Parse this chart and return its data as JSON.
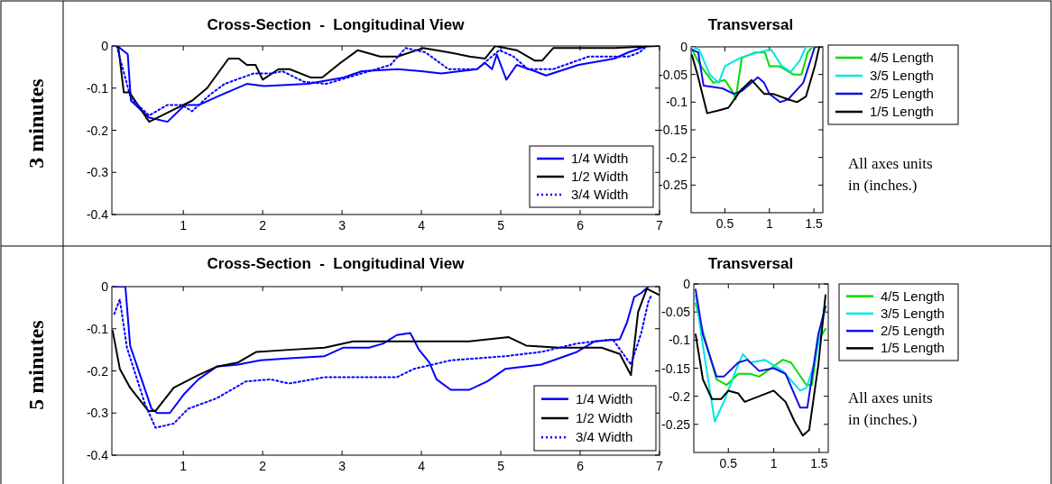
{
  "chart_data": [
    {
      "type": "line",
      "title": "Cross-Section  -  Longitudinal View",
      "ylabel": "3 minutes",
      "xlim": [
        0.1,
        7
      ],
      "ylim": [
        -0.4,
        0
      ],
      "xticks": [
        1,
        2,
        3,
        4,
        5,
        6,
        7
      ],
      "yticks": [
        0,
        -0.1,
        -0.2,
        -0.3,
        -0.4
      ],
      "legend": "bottom right",
      "series": [
        {
          "name": "1/4 Width",
          "color": "#0000ff",
          "line_style": "solid",
          "x": [
            0.17,
            0.3,
            0.34,
            0.57,
            0.8,
            1.02,
            1.2,
            1.43,
            1.8,
            2.02,
            2.57,
            3.02,
            3.25,
            3.7,
            4.0,
            4.25,
            4.7,
            4.8,
            4.89,
            4.95,
            5.07,
            5.2,
            5.43,
            5.57,
            5.98,
            6.43,
            6.61,
            6.84,
            6.98
          ],
          "values": [
            0,
            -0.02,
            -0.13,
            -0.17,
            -0.18,
            -0.14,
            -0.14,
            -0.12,
            -0.09,
            -0.095,
            -0.09,
            -0.075,
            -0.06,
            -0.055,
            -0.06,
            -0.065,
            -0.055,
            -0.04,
            -0.055,
            -0.02,
            -0.08,
            -0.045,
            -0.06,
            -0.07,
            -0.045,
            -0.03,
            -0.015,
            0,
            0
          ]
        },
        {
          "name": "1/2 Width",
          "color": "#000000",
          "line_style": "solid",
          "x": [
            0.18,
            0.25,
            0.32,
            0.57,
            0.89,
            1.11,
            1.3,
            1.57,
            1.7,
            1.8,
            1.91,
            2.0,
            2.2,
            2.34,
            2.61,
            2.75,
            2.98,
            3.2,
            3.48,
            3.7,
            4.02,
            4.34,
            4.61,
            4.8,
            4.93,
            5.2,
            5.43,
            5.52,
            5.66,
            6.43,
            6.98
          ],
          "values": [
            0,
            -0.11,
            -0.11,
            -0.18,
            -0.15,
            -0.13,
            -0.1,
            -0.03,
            -0.03,
            -0.045,
            -0.045,
            -0.08,
            -0.055,
            -0.055,
            -0.075,
            -0.075,
            -0.04,
            -0.01,
            -0.025,
            -0.025,
            -0.005,
            -0.015,
            -0.025,
            -0.03,
            0,
            -0.01,
            -0.035,
            -0.035,
            -0.005,
            -0.005,
            0
          ]
        },
        {
          "name": "3/4 Width",
          "color": "#0000ff",
          "line_style": "dotted",
          "x": [
            0.16,
            0.34,
            0.57,
            0.8,
            0.98,
            1.11,
            1.34,
            1.52,
            1.89,
            2.11,
            2.25,
            2.52,
            2.8,
            3.25,
            3.61,
            3.8,
            4.05,
            4.34,
            4.7,
            4.98,
            5.16,
            5.34,
            5.66,
            6.11,
            6.61,
            6.75,
            6.84
          ],
          "values": [
            0,
            -0.125,
            -0.165,
            -0.14,
            -0.14,
            -0.155,
            -0.115,
            -0.09,
            -0.065,
            -0.065,
            -0.06,
            -0.085,
            -0.09,
            -0.065,
            -0.045,
            -0.005,
            -0.015,
            -0.055,
            -0.055,
            -0.01,
            -0.025,
            -0.055,
            -0.055,
            -0.025,
            -0.025,
            -0.015,
            0
          ]
        }
      ]
    },
    {
      "type": "line",
      "title": "Transversal",
      "xlim": [
        0.12,
        1.6
      ],
      "ylim": [
        -0.3,
        0
      ],
      "xticks": [
        0.5,
        1,
        1.5
      ],
      "yticks": [
        0,
        -0.05,
        -0.1,
        -0.15,
        -0.2,
        -0.25
      ],
      "legend": "right",
      "annotations": [
        "All axes units in (inches.)"
      ],
      "series": [
        {
          "name": "4/5 Length",
          "color": "#00dd00",
          "line_style": "solid",
          "x": [
            0.13,
            0.23,
            0.37,
            0.5,
            0.6,
            0.62,
            0.69,
            0.84,
            0.95,
            1.0,
            1.11,
            1.27,
            1.36,
            1.43,
            1.48
          ],
          "values": [
            -0.005,
            -0.035,
            -0.065,
            -0.06,
            -0.085,
            -0.095,
            -0.02,
            -0.01,
            -0.01,
            -0.035,
            -0.035,
            -0.05,
            -0.05,
            -0.01,
            0
          ]
        },
        {
          "name": "3/5 Length",
          "color": "#00e5e5",
          "line_style": "solid",
          "x": [
            0.13,
            0.21,
            0.33,
            0.43,
            0.5,
            0.67,
            0.87,
            1.02,
            1.14,
            1.24,
            1.34,
            1.41,
            1.54
          ],
          "values": [
            0,
            -0.005,
            -0.05,
            -0.065,
            -0.035,
            -0.02,
            -0.01,
            -0.005,
            -0.035,
            -0.045,
            -0.025,
            0,
            0
          ]
        },
        {
          "name": "2/5 Length",
          "color": "#1010e0",
          "line_style": "solid",
          "x": [
            0.13,
            0.2,
            0.26,
            0.47,
            0.6,
            0.69,
            0.87,
            0.94,
            1.0,
            1.12,
            1.21,
            1.38,
            1.51,
            1.58
          ],
          "values": [
            -0.005,
            -0.01,
            -0.07,
            -0.075,
            -0.085,
            -0.08,
            -0.055,
            -0.065,
            -0.085,
            -0.1,
            -0.095,
            -0.065,
            0,
            0
          ]
        },
        {
          "name": "1/5 Length",
          "color": "#000000",
          "line_style": "solid",
          "x": [
            0.13,
            0.2,
            0.3,
            0.43,
            0.54,
            0.67,
            0.8,
            0.94,
            1.04,
            1.21,
            1.31,
            1.41,
            1.51,
            1.56
          ],
          "values": [
            -0.015,
            -0.055,
            -0.12,
            -0.115,
            -0.11,
            -0.08,
            -0.06,
            -0.085,
            -0.085,
            -0.095,
            -0.1,
            -0.09,
            -0.035,
            0
          ]
        }
      ]
    },
    {
      "type": "line",
      "title": "Cross-Section  -  Longitudinal View",
      "ylabel": "5 minutes",
      "xlim": [
        0.1,
        7
      ],
      "ylim": [
        -0.4,
        0
      ],
      "xticks": [
        1,
        2,
        3,
        4,
        5,
        6,
        7
      ],
      "yticks": [
        0,
        -0.1,
        -0.2,
        -0.3,
        -0.4
      ],
      "legend": "bottom right",
      "series": [
        {
          "name": "1/4 Width",
          "color": "#0000ff",
          "line_style": "solid",
          "x": [
            0.13,
            0.27,
            0.33,
            0.42,
            0.6,
            0.67,
            0.83,
            1.01,
            1.19,
            1.42,
            1.69,
            1.97,
            2.34,
            2.78,
            3.01,
            3.34,
            3.52,
            3.69,
            3.86,
            3.97,
            4.1,
            4.19,
            4.37,
            4.6,
            4.83,
            5.06,
            5.51,
            5.96,
            6.18,
            6.5,
            6.59,
            6.68,
            6.77,
            6.86
          ],
          "values": [
            0,
            0,
            -0.14,
            -0.19,
            -0.29,
            -0.3,
            -0.3,
            -0.255,
            -0.22,
            -0.19,
            -0.185,
            -0.175,
            -0.17,
            -0.165,
            -0.145,
            -0.145,
            -0.135,
            -0.115,
            -0.11,
            -0.15,
            -0.18,
            -0.22,
            -0.245,
            -0.245,
            -0.225,
            -0.195,
            -0.185,
            -0.155,
            -0.13,
            -0.125,
            -0.085,
            -0.025,
            -0.015,
            0
          ]
        },
        {
          "name": "1/2 Width",
          "color": "#000000",
          "line_style": "solid",
          "x": [
            0.11,
            0.2,
            0.33,
            0.56,
            0.65,
            0.88,
            1.19,
            1.42,
            1.69,
            1.92,
            2.33,
            2.78,
            3.14,
            3.5,
            3.91,
            4.6,
            5.1,
            5.32,
            5.73,
            6.27,
            6.5,
            6.64,
            6.73,
            6.84,
            7.0
          ],
          "values": [
            -0.105,
            -0.195,
            -0.24,
            -0.295,
            -0.295,
            -0.24,
            -0.21,
            -0.19,
            -0.18,
            -0.155,
            -0.15,
            -0.145,
            -0.13,
            -0.13,
            -0.13,
            -0.13,
            -0.12,
            -0.14,
            -0.145,
            -0.145,
            -0.16,
            -0.21,
            -0.06,
            -0.005,
            -0.02
          ]
        },
        {
          "name": "3/4 Width",
          "color": "#0000ff",
          "line_style": "dotted",
          "x": [
            0.13,
            0.2,
            0.29,
            0.52,
            0.65,
            0.88,
            1.06,
            1.42,
            1.79,
            2.1,
            2.33,
            2.78,
            3.23,
            3.69,
            3.91,
            4.37,
            5.06,
            5.51,
            5.96,
            6.41,
            6.64,
            6.77,
            6.86,
            6.9
          ],
          "values": [
            -0.065,
            -0.03,
            -0.145,
            -0.28,
            -0.335,
            -0.325,
            -0.29,
            -0.265,
            -0.225,
            -0.22,
            -0.23,
            -0.215,
            -0.215,
            -0.215,
            -0.195,
            -0.175,
            -0.165,
            -0.155,
            -0.135,
            -0.125,
            -0.185,
            -0.11,
            -0.035,
            -0.02
          ]
        }
      ]
    },
    {
      "type": "line",
      "title": "Transversal",
      "xlim": [
        0.12,
        1.6
      ],
      "ylim": [
        -0.3,
        0
      ],
      "xticks": [
        0.5,
        1,
        1.5
      ],
      "yticks": [
        0,
        -0.05,
        -0.1,
        -0.15,
        -0.2,
        -0.25
      ],
      "legend": "right",
      "annotations": [
        "All axes units in (inches.)"
      ],
      "series": [
        {
          "name": "4/5 Length",
          "color": "#00dd00",
          "line_style": "solid",
          "x": [
            0.14,
            0.22,
            0.37,
            0.48,
            0.61,
            0.74,
            0.84,
            0.97,
            1.1,
            1.19,
            1.36,
            1.42,
            1.49,
            1.57
          ],
          "values": [
            -0.035,
            -0.085,
            -0.17,
            -0.18,
            -0.16,
            -0.16,
            -0.165,
            -0.15,
            -0.135,
            -0.14,
            -0.18,
            -0.18,
            -0.1,
            -0.08
          ]
        },
        {
          "name": "3/5 Length",
          "color": "#00e5e5",
          "line_style": "solid",
          "x": [
            0.14,
            0.22,
            0.35,
            0.45,
            0.58,
            0.66,
            0.74,
            0.9,
            1.1,
            1.29,
            1.36,
            1.45,
            1.57
          ],
          "values": [
            -0.02,
            -0.11,
            -0.245,
            -0.21,
            -0.155,
            -0.125,
            -0.14,
            -0.135,
            -0.155,
            -0.19,
            -0.185,
            -0.14,
            -0.04
          ]
        },
        {
          "name": "2/5 Length",
          "color": "#1010e0",
          "line_style": "solid",
          "x": [
            0.14,
            0.22,
            0.37,
            0.45,
            0.61,
            0.71,
            0.84,
            1.0,
            1.13,
            1.29,
            1.37,
            1.49,
            1.57
          ],
          "values": [
            -0.01,
            -0.09,
            -0.165,
            -0.165,
            -0.14,
            -0.135,
            -0.155,
            -0.15,
            -0.16,
            -0.22,
            -0.22,
            -0.09,
            -0.04
          ]
        },
        {
          "name": "1/5 Length",
          "color": "#000000",
          "line_style": "solid",
          "x": [
            0.14,
            0.22,
            0.32,
            0.42,
            0.5,
            0.61,
            0.68,
            0.84,
            1.0,
            1.13,
            1.23,
            1.32,
            1.39,
            1.49,
            1.57
          ],
          "values": [
            -0.09,
            -0.17,
            -0.205,
            -0.205,
            -0.19,
            -0.195,
            -0.21,
            -0.2,
            -0.19,
            -0.21,
            -0.245,
            -0.27,
            -0.26,
            -0.145,
            -0.02
          ]
        }
      ]
    }
  ]
}
